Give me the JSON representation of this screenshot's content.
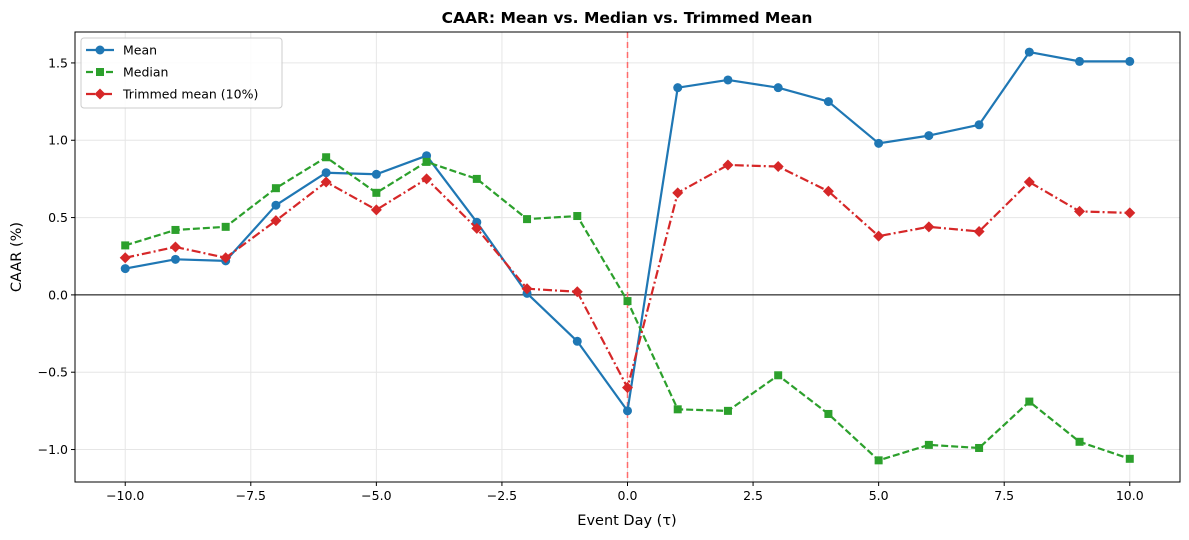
{
  "chart_data": {
    "type": "line",
    "title": "CAAR: Mean vs. Median vs. Trimmed Mean",
    "xlabel": "Event Day (τ)",
    "ylabel": "CAAR (%)",
    "xlim": [
      -11,
      11
    ],
    "ylim": [
      -1.21,
      1.7
    ],
    "xticks": [
      -10,
      -7.5,
      -5,
      -2.5,
      0,
      2.5,
      5,
      7.5,
      10
    ],
    "xtick_labels": [
      "−10.0",
      "−7.5",
      "−5.0",
      "−2.5",
      "0.0",
      "2.5",
      "5.0",
      "7.5",
      "10.0"
    ],
    "yticks": [
      -1.0,
      -0.5,
      0.0,
      0.5,
      1.0,
      1.5
    ],
    "ytick_labels": [
      "−1.0",
      "−0.5",
      "0.0",
      "0.5",
      "1.0",
      "1.5"
    ],
    "grid": true,
    "legend_position": "top-left",
    "reference_lines": {
      "horizontal": {
        "y": 0,
        "color": "#000000"
      },
      "vertical": {
        "x": 0,
        "color": "#ff6b6b",
        "style": "dashed"
      }
    },
    "x": [
      -10,
      -9,
      -8,
      -7,
      -6,
      -5,
      -4,
      -3,
      -2,
      -1,
      0,
      1,
      2,
      3,
      4,
      5,
      6,
      7,
      8,
      9,
      10
    ],
    "series": [
      {
        "name": "Mean",
        "color": "#1f77b4",
        "marker": "circle",
        "line_style": "solid",
        "values": [
          0.17,
          0.23,
          0.22,
          0.58,
          0.79,
          0.78,
          0.9,
          0.47,
          0.01,
          -0.3,
          -0.75,
          1.34,
          1.39,
          1.34,
          1.25,
          0.98,
          1.03,
          1.1,
          1.57,
          1.51,
          1.51
        ]
      },
      {
        "name": "Median",
        "color": "#2ca02c",
        "marker": "square",
        "line_style": "dashed",
        "values": [
          0.32,
          0.42,
          0.44,
          0.69,
          0.89,
          0.66,
          0.86,
          0.75,
          0.49,
          0.51,
          -0.04,
          -0.74,
          -0.75,
          -0.52,
          -0.77,
          -1.07,
          -0.97,
          -0.99,
          -0.69,
          -0.95,
          -1.06
        ]
      },
      {
        "name": "Trimmed mean (10%)",
        "color": "#d62728",
        "marker": "diamond",
        "line_style": "dashdot",
        "values": [
          0.24,
          0.31,
          0.24,
          0.48,
          0.73,
          0.55,
          0.75,
          0.43,
          0.04,
          0.02,
          -0.6,
          0.66,
          0.84,
          0.83,
          0.67,
          0.38,
          0.44,
          0.41,
          0.73,
          0.54,
          0.53
        ]
      }
    ]
  }
}
